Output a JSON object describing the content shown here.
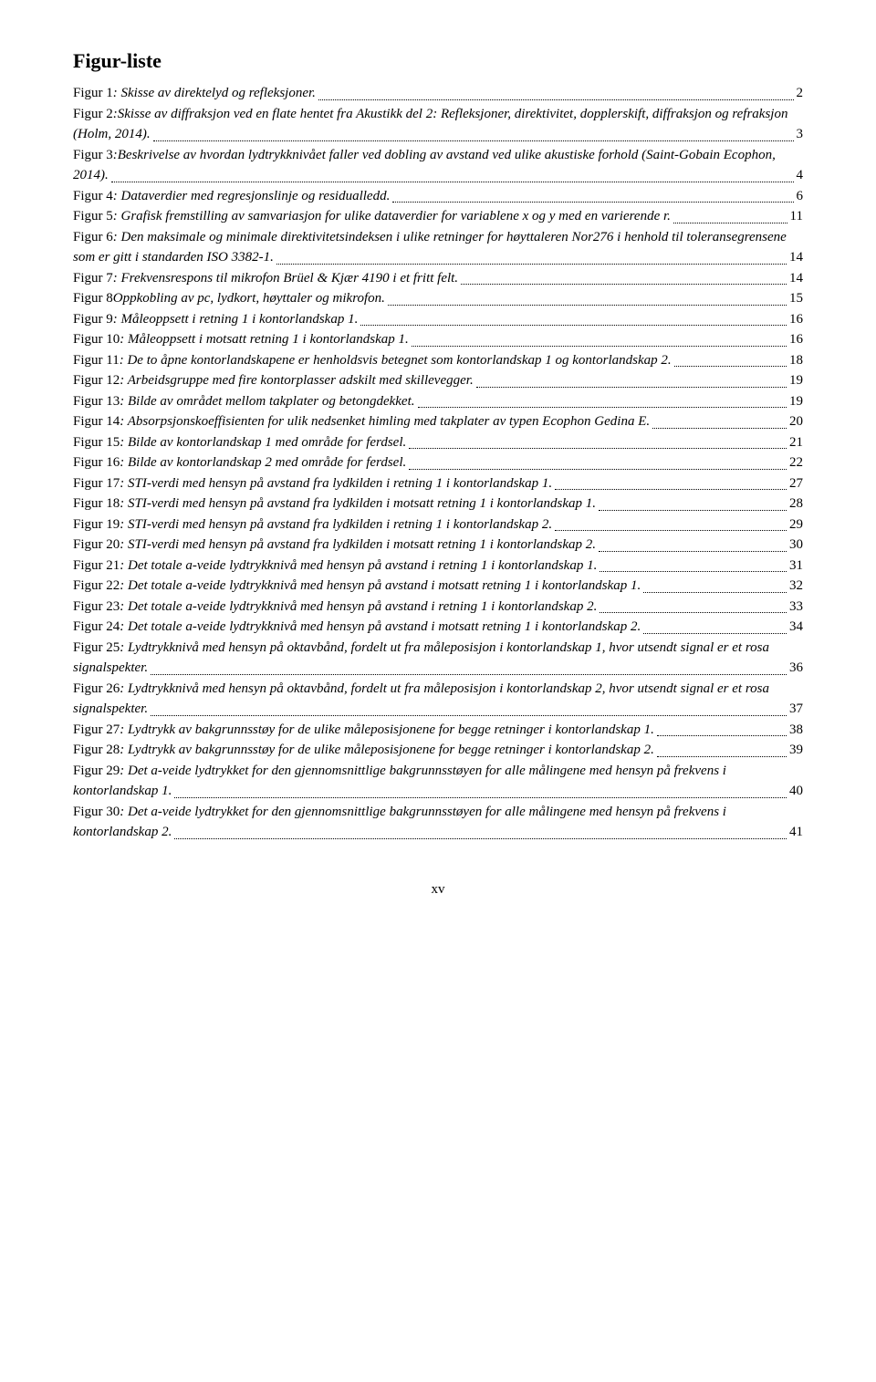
{
  "page_title": "Figur-liste",
  "page_number": "xv",
  "entries": [
    {
      "label": "Figur 1",
      "desc": ": Skisse av direktelyd og refleksjoner.",
      "page": "2"
    },
    {
      "label": "Figur 2",
      "desc": ":Skisse av diffraksjon ved en flate hentet fra Akustikk del 2: Refleksjoner, direktivitet, dopplerskift, diffraksjon og refraksjon (Holm, 2014).",
      "page": "3"
    },
    {
      "label": "Figur 3",
      "desc": ":Beskrivelse av hvordan lydtrykknivået faller ved dobling av avstand ved ulike akustiske forhold (Saint-Gobain Ecophon, 2014).",
      "page": "4"
    },
    {
      "label": "Figur 4",
      "desc": ": Dataverdier med regresjonslinje og residualledd.",
      "page": "6"
    },
    {
      "label": "Figur 5",
      "desc": ": Grafisk fremstilling av samvariasjon for ulike dataverdier for variablene x og y med en varierende r.",
      "page": "11"
    },
    {
      "label": "Figur 6",
      "desc": ": Den maksimale og minimale direktivitetsindeksen i ulike retninger for høyttaleren Nor276 i henhold til toleransegrensene som er gitt i standarden ISO 3382-1.",
      "page": "14"
    },
    {
      "label": "Figur 7",
      "desc": ": Frekvensrespons til mikrofon Brüel & Kjær 4190 i et fritt felt.",
      "page": "14"
    },
    {
      "label": "Figur 8",
      "desc": " Oppkobling av pc, lydkort, høyttaler og mikrofon.",
      "page": "15"
    },
    {
      "label": "Figur 9",
      "desc": ": Måleoppsett i retning 1 i kontorlandskap 1.",
      "page": "16"
    },
    {
      "label": "Figur 10",
      "desc": ": Måleoppsett i motsatt retning 1 i kontorlandskap 1.",
      "page": "16"
    },
    {
      "label": "Figur 11",
      "desc": ": De to åpne kontorlandskapene er henholdsvis betegnet som kontorlandskap 1 og kontorlandskap 2.",
      "page": "18"
    },
    {
      "label": "Figur 12",
      "desc": ": Arbeidsgruppe med fire kontorplasser adskilt med skillevegger.",
      "page": "19"
    },
    {
      "label": "Figur 13",
      "desc": ": Bilde av området mellom takplater og betongdekket.",
      "page": "19"
    },
    {
      "label": "Figur 14",
      "desc": ": Absorpsjonskoeffisienten for ulik nedsenket himling med takplater av typen Ecophon Gedina E.",
      "page": "20"
    },
    {
      "label": "Figur 15",
      "desc": ": Bilde av kontorlandskap 1 med område for ferdsel.",
      "page": "21"
    },
    {
      "label": "Figur 16",
      "desc": ": Bilde av kontorlandskap 2 med område for ferdsel.",
      "page": "22"
    },
    {
      "label": "Figur 17",
      "desc": ": STI-verdi med hensyn på avstand fra lydkilden i retning 1 i kontorlandskap 1.",
      "page": "27"
    },
    {
      "label": "Figur 18",
      "desc": ": STI-verdi med hensyn på avstand fra lydkilden i motsatt retning 1 i kontorlandskap 1.",
      "page": "28"
    },
    {
      "label": "Figur 19",
      "desc": ": STI-verdi med hensyn på avstand fra lydkilden i retning 1 i kontorlandskap 2.",
      "page": "29"
    },
    {
      "label": "Figur 20",
      "desc": ": STI-verdi med hensyn på avstand fra lydkilden i motsatt retning 1 i kontorlandskap 2.",
      "page": "30"
    },
    {
      "label": "Figur 21",
      "desc": ": Det totale a-veide lydtrykknivå med hensyn på avstand i retning 1 i kontorlandskap 1.",
      "page": "31"
    },
    {
      "label": "Figur 22",
      "desc": ": Det totale a-veide lydtrykknivå med hensyn på avstand i motsatt retning 1 i kontorlandskap 1.",
      "page": "32"
    },
    {
      "label": "Figur 23",
      "desc": ": Det totale a-veide lydtrykknivå med hensyn på avstand i retning 1 i kontorlandskap 2.",
      "page": "33"
    },
    {
      "label": "Figur 24",
      "desc": ": Det totale a-veide lydtrykknivå med hensyn på avstand i motsatt retning 1 i kontorlandskap 2.",
      "page": "34"
    },
    {
      "label": "Figur 25",
      "desc": ": Lydtrykknivå med hensyn på oktavbånd, fordelt ut fra måleposisjon i kontorlandskap 1, hvor utsendt signal er et rosa signalspekter.",
      "page": "36"
    },
    {
      "label": "Figur 26",
      "desc": ": Lydtrykknivå med hensyn på oktavbånd, fordelt ut fra måleposisjon i kontorlandskap 2, hvor utsendt signal er et rosa signalspekter.",
      "page": "37"
    },
    {
      "label": "Figur 27",
      "desc": ": Lydtrykk av bakgrunnsstøy for de ulike måleposisjonene for begge retninger i kontorlandskap 1.",
      "page": "38"
    },
    {
      "label": "Figur 28",
      "desc": ": Lydtrykk av bakgrunnsstøy for de ulike måleposisjonene for begge retninger i kontorlandskap 2.",
      "page": "39"
    },
    {
      "label": "Figur 29",
      "desc": ": Det a-veide lydtrykket for den gjennomsnittlige bakgrunnsstøyen for alle målingene med hensyn på frekvens i kontorlandskap 1.",
      "page": "40"
    },
    {
      "label": "Figur 30",
      "desc": ": Det a-veide lydtrykket for den gjennomsnittlige bakgrunnsstøyen for alle målingene med hensyn på frekvens i kontorlandskap 2.",
      "page": "41"
    }
  ]
}
